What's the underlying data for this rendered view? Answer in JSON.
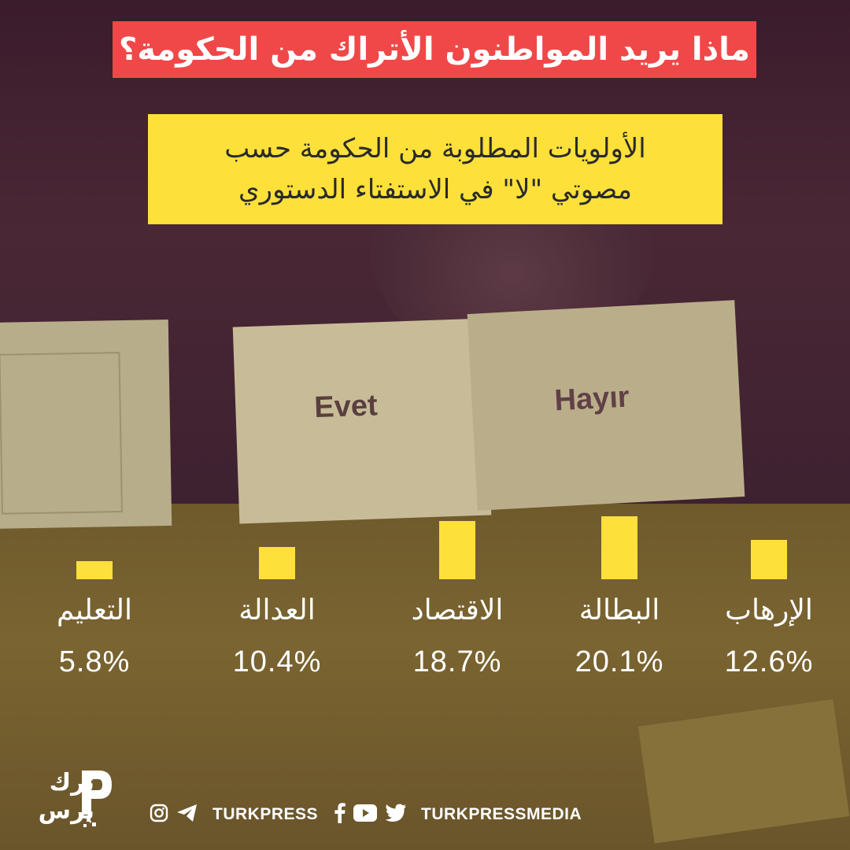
{
  "title": "ماذا يريد المواطنون الأتراك من الحكومة؟",
  "subtitle_line1": "الأولويات المطلوبة من الحكومة حسب",
  "subtitle_line2": "مصوتي \"لا\" في الاستفتاء الدستوري",
  "background": {
    "card_evet": "Evet",
    "card_hayir": "Hayır"
  },
  "chart_data": {
    "type": "bar",
    "categories": [
      "الإرهاب",
      "البطالة",
      "الاقتصاد",
      "العدالة",
      "التعليم"
    ],
    "values": [
      12.6,
      20.1,
      18.7,
      10.4,
      5.8
    ],
    "value_labels": [
      "12.6%",
      "20.1%",
      "18.7%",
      "10.4%",
      "5.8%"
    ],
    "ylim": [
      0,
      20.1
    ],
    "grid": false,
    "bar_color": "#fde03a"
  },
  "footer": {
    "logo_text_line1": "ترك",
    "logo_text_line2": "برس",
    "handle_1": "TURKPRESS",
    "handle_2": "TURKPRESSMEDIA",
    "icons": [
      "instagram-icon",
      "telegram-icon",
      "facebook-icon",
      "youtube-icon",
      "twitter-icon"
    ]
  },
  "colors": {
    "title_bg": "#f04848",
    "subtitle_bg": "#fde03a",
    "accent": "#fde03a"
  }
}
